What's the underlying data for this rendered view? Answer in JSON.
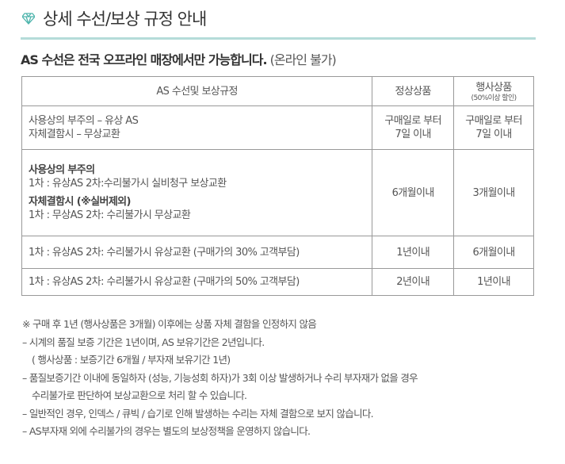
{
  "header": {
    "title": "상세 수선/보상 규정 안내",
    "icon": "diamond-icon",
    "accent": "#b5dcd9"
  },
  "subtitle": {
    "bold": "AS 수선은 전국 오프라인 매장에서만 가능합니다.",
    "normal": "(온라인 불가)"
  },
  "table": {
    "headers": [
      "AS 수선및 보상규정",
      "정상상품",
      "행사상품",
      "(50%이상 할인)"
    ],
    "rows": [
      {
        "lines": [
          "사용상의 부주의 – 유상 AS",
          "자체결함시 – 무상교환"
        ],
        "normal": [
          "구매일로 부터",
          "7일 이내"
        ],
        "event": [
          "구매일로 부터",
          "7일 이내"
        ]
      },
      {
        "lines": [
          "사용상의 부주의",
          "1차 : 유상AS   2차:수리불가시 실비청구 보상교환",
          "자체결함시 (※실버제외)",
          "1차 : 무상AS   2차: 수리불가시 무상교환"
        ],
        "normal": "6개월이내",
        "event": "3개월이내"
      },
      {
        "text": "1차 : 유상AS   2차: 수리불가시 유상교환 (구매가의 30% 고객부담)",
        "normal": "1년이내",
        "event": "6개월이내"
      },
      {
        "text": "1차 : 유상AS   2차: 수리불가시 유상교환 (구매가의 50% 고객부담)",
        "normal": "2년이내",
        "event": "1년이내"
      }
    ]
  },
  "notes": [
    "※ 구매 후 1년 (행사상품은 3개월) 이후에는 상품 자체 결함을 인정하지 않음",
    "– 시계의 품질 보증 기간은 1년이며, AS 보유기간은 2년입니다.",
    "( 행사상품 : 보증기간 6개월 / 부자재 보유기간 1년)",
    "– 품질보증기간 이내에 동일하자 (성능, 기능성회 하자)가 3회 이상 발생하거나 수리 부자재가 없을 경우",
    "수리불가로 판단하여 보상교환으로 처리 할 수 있습니다.",
    "– 일반적인 경우, 인덱스 / 큐빅 / 습기로 인해 발생하는 수리는 자체 결함으로 보지 않습니다.",
    "– AS부자재 외에 수리불가의 경우는 별도의 보상정책을 운영하지 않습니다."
  ]
}
